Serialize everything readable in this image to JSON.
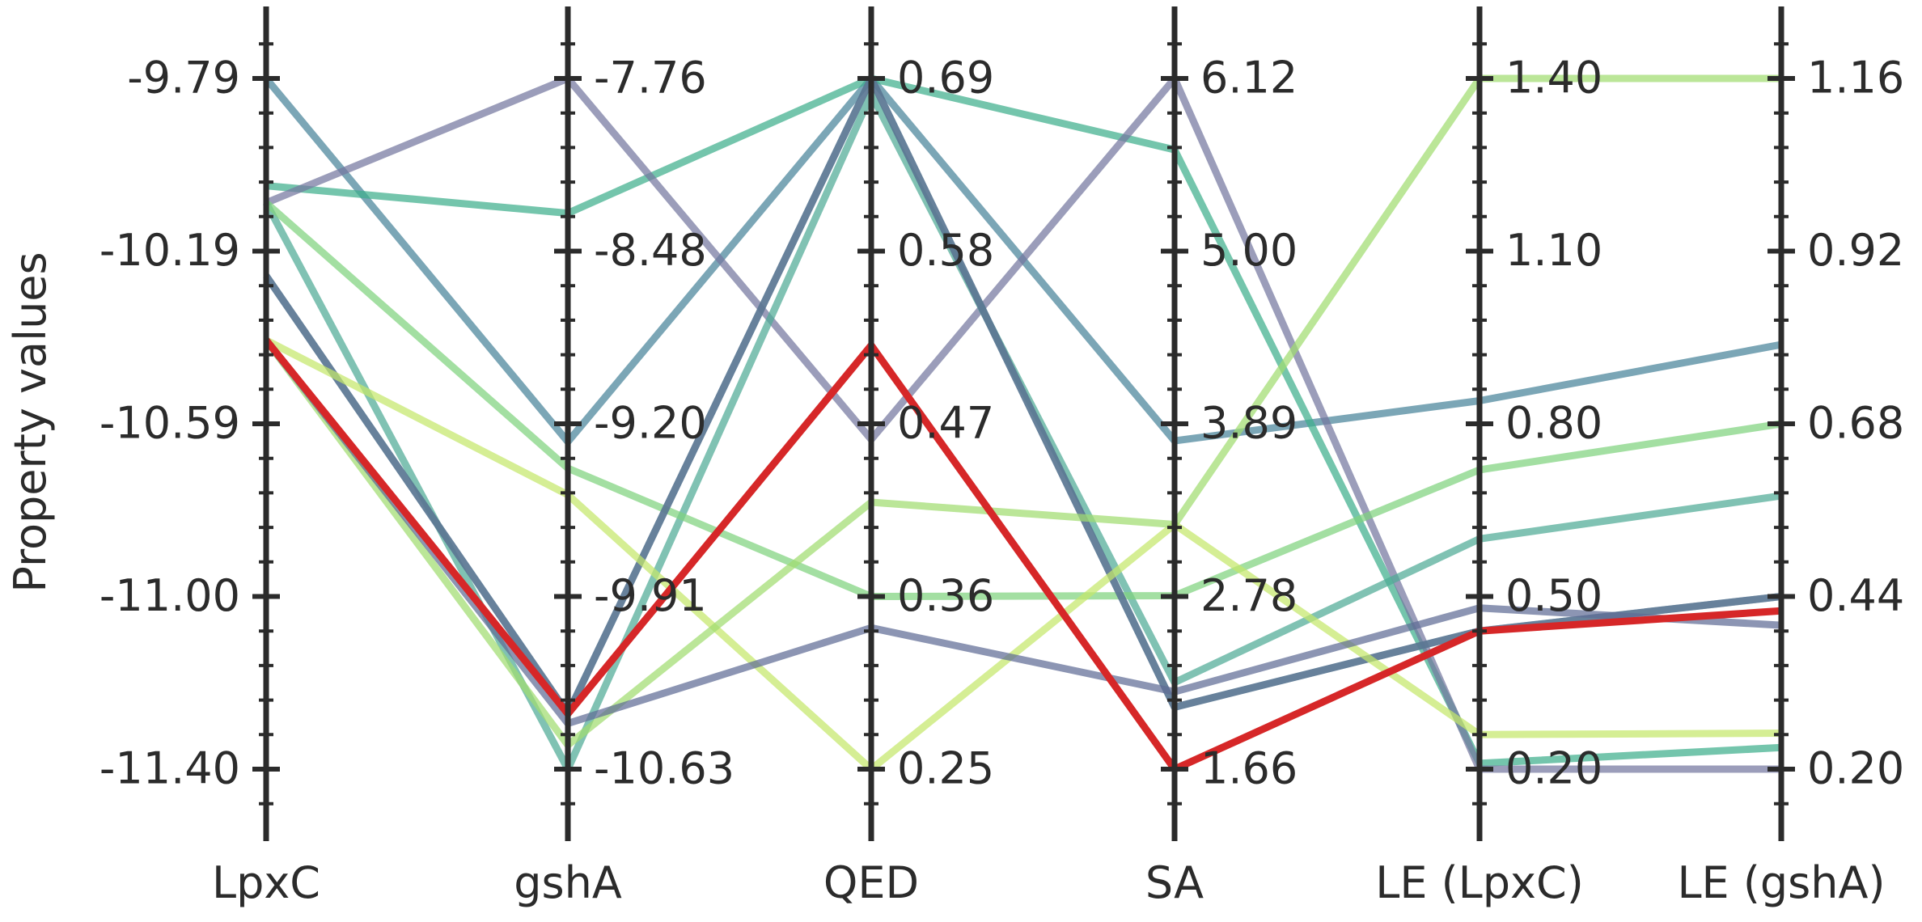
{
  "chart_data": {
    "type": "parallel_coordinates",
    "ylabel": "Property values",
    "axes": [
      {
        "name": "LpxC",
        "ticks": [
          "-9.79",
          "-10.19",
          "-10.59",
          "-11.00",
          "-11.40"
        ],
        "min": -11.4,
        "max": -9.79
      },
      {
        "name": "gshA",
        "ticks": [
          "-7.76",
          "-8.48",
          "-9.20",
          "-9.91",
          "-10.63"
        ],
        "min": -10.63,
        "max": -7.76
      },
      {
        "name": "QED",
        "ticks": [
          "0.69",
          "0.58",
          "0.47",
          "0.36",
          "0.25"
        ],
        "min": 0.25,
        "max": 0.69
      },
      {
        "name": "SA",
        "ticks": [
          "6.12",
          "5.00",
          "3.89",
          "2.78",
          "1.66"
        ],
        "min": 1.66,
        "max": 6.12
      },
      {
        "name": "LE (LpxC)",
        "ticks": [
          "1.40",
          "1.10",
          "0.80",
          "0.50",
          "0.20"
        ],
        "min": 0.2,
        "max": 1.4
      },
      {
        "name": "LE (gshA)",
        "ticks": [
          "1.16",
          "0.92",
          "0.68",
          "0.44",
          "0.20"
        ],
        "min": 0.2,
        "max": 1.16
      }
    ],
    "series": [
      {
        "color": "#48849a",
        "values": [
          -9.79,
          -9.27,
          0.69,
          3.78,
          0.84,
          0.79
        ]
      },
      {
        "color": "#3fae8c",
        "values": [
          -10.04,
          -8.32,
          0.69,
          5.66,
          0.21,
          0.23
        ]
      },
      {
        "color": "#74779f",
        "values": [
          -10.08,
          -7.76,
          0.46,
          6.12,
          0.2,
          0.2
        ]
      },
      {
        "color": "#4faa96",
        "values": [
          -10.08,
          -10.63,
          0.68,
          2.22,
          0.6,
          0.58
        ]
      },
      {
        "color": "#7fd37e",
        "values": [
          -10.08,
          -9.38,
          0.36,
          2.78,
          0.72,
          0.68
        ]
      },
      {
        "color": "#4a88a0",
        "values": [
          -10.25,
          -10.4,
          0.69,
          2.06,
          0.44,
          0.44
        ]
      },
      {
        "color": "#60718f",
        "values": [
          -10.25,
          -10.4,
          0.69,
          2.06,
          0.44,
          0.44
        ]
      },
      {
        "color": "#c5e86b",
        "values": [
          -10.4,
          -9.49,
          0.25,
          3.24,
          0.26,
          0.25
        ]
      },
      {
        "color": "#a1dd70",
        "values": [
          -10.4,
          -10.53,
          0.42,
          3.24,
          1.4,
          1.16
        ]
      },
      {
        "color": "#5f6c96",
        "values": [
          -10.4,
          -10.44,
          0.34,
          2.16,
          0.48,
          0.4
        ]
      },
      {
        "color": "#d62728",
        "values": [
          -10.4,
          -10.4,
          0.52,
          1.66,
          0.44,
          0.42
        ]
      }
    ]
  }
}
